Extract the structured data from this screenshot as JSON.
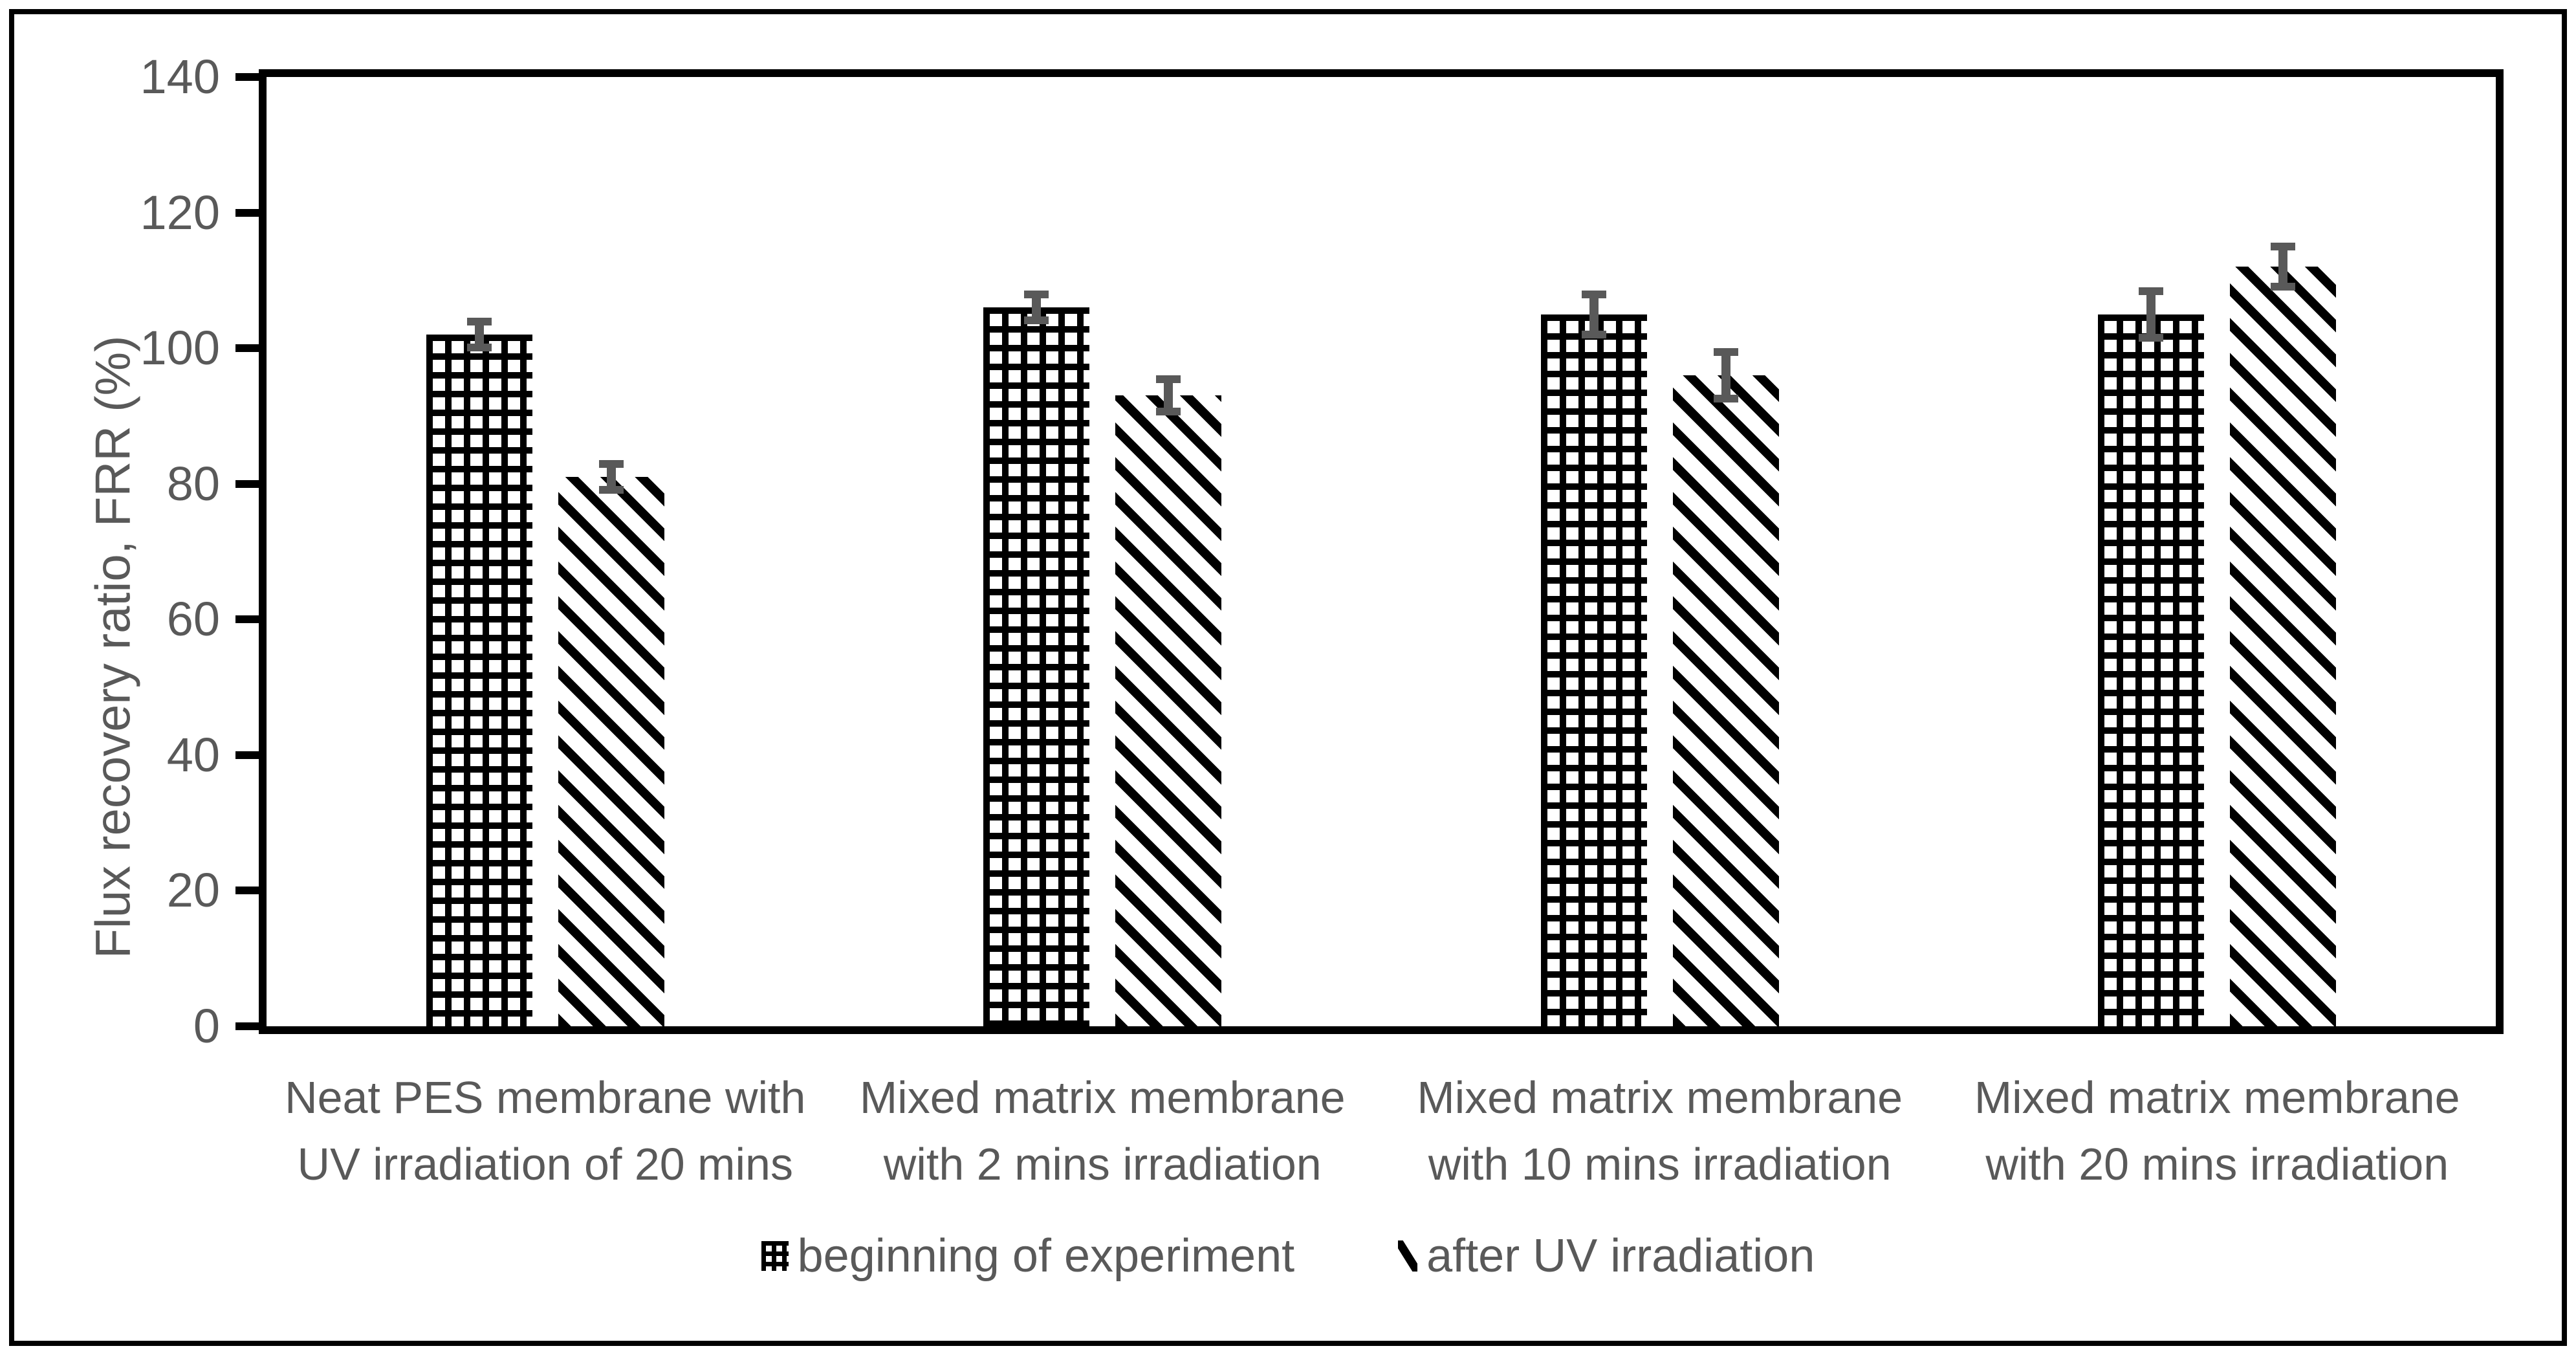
{
  "chart_data": {
    "type": "bar",
    "title": "",
    "xlabel": "",
    "ylabel": "Flux recovery ratio, FRR (%)",
    "ylim": [
      0,
      140
    ],
    "yticks": [
      0,
      20,
      40,
      60,
      80,
      100,
      120,
      140
    ],
    "grid": false,
    "legend_position": "bottom-center",
    "categories": [
      [
        "Neat PES membrane with",
        "UV irradiation of 20 mins"
      ],
      [
        "Mixed matrix membrane",
        "with 2 mins irradiation"
      ],
      [
        "Mixed matrix membrane",
        "with 10 mins irradiation"
      ],
      [
        "Mixed matrix membrane",
        "with 20 mins irradiation"
      ]
    ],
    "series": [
      {
        "name": "beginning of experiment",
        "pattern": "grid",
        "values": [
          102,
          106,
          105,
          105
        ],
        "errors": [
          2.5,
          2.5,
          3.5,
          4
        ]
      },
      {
        "name": "after UV irradiation",
        "pattern": "diagonal",
        "values": [
          81,
          93,
          96,
          112
        ],
        "errors": [
          2.5,
          3,
          4,
          3.5
        ]
      }
    ]
  },
  "colors": {
    "bar_pattern": "#000000",
    "axis": "#000000",
    "text": "#595959",
    "error_bar": "#595959",
    "background": "#ffffff"
  }
}
